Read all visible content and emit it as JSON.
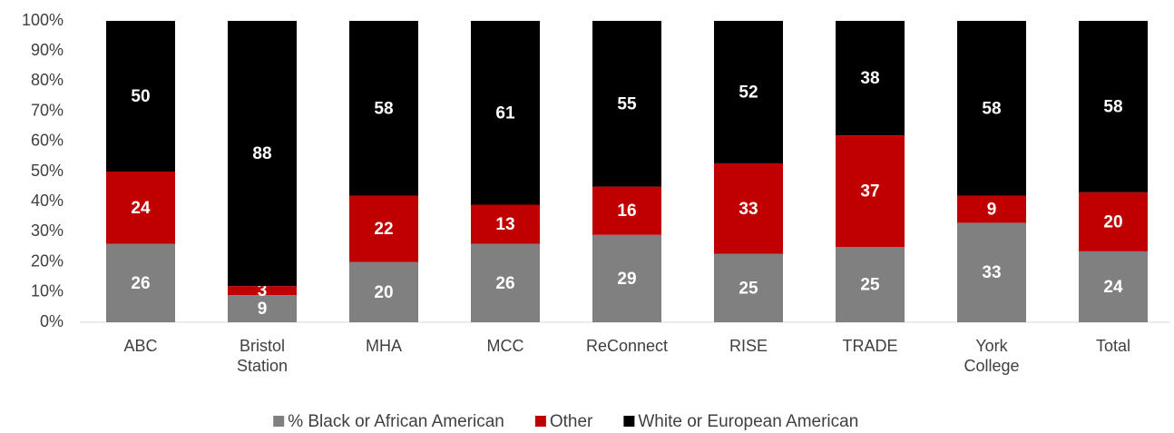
{
  "chart_data": {
    "type": "bar",
    "stacking": "percent",
    "categories": [
      "ABC",
      "Bristol\nStation",
      "MHA",
      "MCC",
      "ReConnect",
      "RISE",
      "TRADE",
      "York\nCollege",
      "Total"
    ],
    "series": [
      {
        "name": "% Black or African American",
        "color": "#808080",
        "values": [
          26,
          9,
          20,
          26,
          29,
          25,
          25,
          33,
          24
        ]
      },
      {
        "name": "Other",
        "color": "#c00000",
        "values": [
          24,
          3,
          22,
          13,
          16,
          33,
          37,
          9,
          20
        ]
      },
      {
        "name": "White or European American",
        "color": "#000000",
        "values": [
          50,
          88,
          58,
          61,
          55,
          52,
          38,
          58,
          58
        ]
      }
    ],
    "ylim": [
      0,
      100
    ],
    "yticks": [
      {
        "value": 0,
        "label": "0%"
      },
      {
        "value": 10,
        "label": "10%"
      },
      {
        "value": 20,
        "label": "20%"
      },
      {
        "value": 30,
        "label": "30%"
      },
      {
        "value": 40,
        "label": "40%"
      },
      {
        "value": 50,
        "label": "50%"
      },
      {
        "value": 60,
        "label": "60%"
      },
      {
        "value": 70,
        "label": "70%"
      },
      {
        "value": 80,
        "label": "80%"
      },
      {
        "value": 90,
        "label": "90%"
      },
      {
        "value": 100,
        "label": "100%"
      }
    ],
    "grid": false,
    "legend": "bottom"
  }
}
